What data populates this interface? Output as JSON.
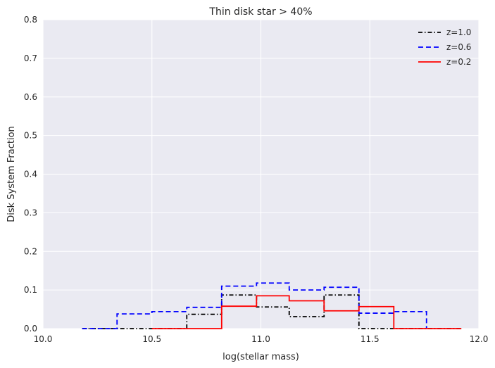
{
  "chart_data": {
    "type": "line",
    "step": true,
    "title": "Thin disk star > 40%",
    "xlabel": "log(stellar mass)",
    "ylabel": "Disk System Fraction",
    "xlim": [
      10.0,
      12.0
    ],
    "ylim": [
      0.0,
      0.8
    ],
    "xticks": [
      "10.0",
      "10.5",
      "11.0",
      "11.5",
      "12.0"
    ],
    "yticks": [
      "0.0",
      "0.1",
      "0.2",
      "0.3",
      "0.4",
      "0.5",
      "0.6",
      "0.7",
      "0.8"
    ],
    "grid": true,
    "legend_position": "top-right",
    "background_color": "#EAEAF2",
    "series": [
      {
        "name": "z=1.0",
        "color": "#000000",
        "linestyle": "dashdot",
        "x": [
          10.18,
          10.34,
          10.5,
          10.66,
          10.82,
          10.98,
          11.13,
          11.29,
          11.45,
          11.61,
          11.76,
          11.92
        ],
        "y": [
          0.0,
          0.0,
          0.0,
          0.037,
          0.087,
          0.056,
          0.031,
          0.087,
          0.0,
          0.0,
          0.0,
          0.0
        ]
      },
      {
        "name": "z=0.6",
        "color": "#0000FF",
        "linestyle": "dashed",
        "x": [
          10.18,
          10.34,
          10.5,
          10.66,
          10.82,
          10.98,
          11.13,
          11.29,
          11.45,
          11.61,
          11.76
        ],
        "y": [
          0.0,
          0.038,
          0.044,
          0.055,
          0.11,
          0.118,
          0.1,
          0.107,
          0.04,
          0.044,
          0.0
        ]
      },
      {
        "name": "z=0.2",
        "color": "#FF0000",
        "linestyle": "solid",
        "x": [
          10.5,
          10.66,
          10.82,
          10.98,
          11.13,
          11.29,
          11.45,
          11.61,
          11.76,
          11.92
        ],
        "y": [
          0.0,
          0.0,
          0.058,
          0.085,
          0.072,
          0.046,
          0.057,
          0.0,
          0.0,
          0.0
        ]
      }
    ]
  }
}
